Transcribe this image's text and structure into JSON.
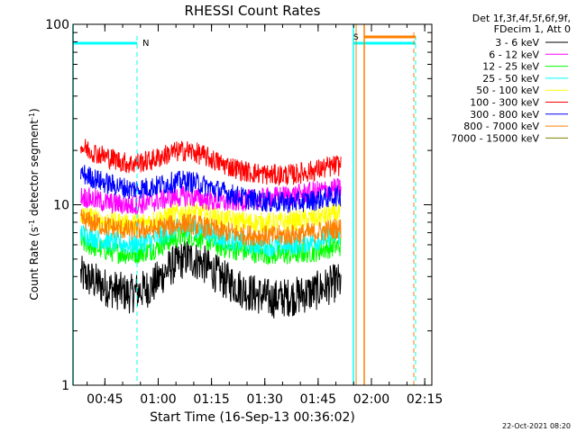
{
  "chart_data": {
    "type": "line",
    "title": "RHESSI Count Rates",
    "xlabel": "Start Time (16-Sep-13 00:36:02)",
    "ylabel_parts": [
      "Count Rate (s",
      "-1",
      " detector segment",
      "-1",
      ")"
    ],
    "yscale": "log",
    "ylim": [
      1,
      100
    ],
    "xlim": [
      "00:36:02",
      "02:17:00"
    ],
    "x_ticks": [
      "00:45",
      "01:00",
      "01:15",
      "01:30",
      "01:45",
      "02:00",
      "02:15"
    ],
    "y_ticks": [
      "1",
      "10",
      "100"
    ],
    "legend_header": [
      "Det 1f,3f,4f,5f,6f,9f,",
      "FDecim 1, Att 0"
    ],
    "legend_position": "top-right",
    "date_stamp": "22-Oct-2021 08:20",
    "series": [
      {
        "name": "3 - 6 keV",
        "color": "#000000",
        "x": [
          "00:38",
          "00:45",
          "00:52",
          "00:58",
          "01:04",
          "01:08",
          "01:12",
          "01:18",
          "01:25",
          "01:32",
          "01:38",
          "01:44",
          "01:50"
        ],
        "y": [
          4.1,
          3.5,
          3.2,
          3.5,
          4.6,
          5.1,
          4.8,
          3.9,
          3.3,
          3.0,
          3.1,
          3.3,
          3.7
        ]
      },
      {
        "name": "6 - 12 keV",
        "color": "#ff00ff",
        "x": [
          "00:38",
          "00:45",
          "00:52",
          "00:58",
          "01:04",
          "01:08",
          "01:12",
          "01:18",
          "01:25",
          "01:32",
          "01:38",
          "01:44",
          "01:50"
        ],
        "y": [
          11.2,
          10.3,
          9.9,
          10.3,
          11.0,
          11.2,
          10.8,
          10.3,
          10.6,
          11.0,
          11.3,
          11.8,
          12.3
        ]
      },
      {
        "name": "12 - 25 keV",
        "color": "#00ff00",
        "x": [
          "00:38",
          "00:45",
          "00:52",
          "00:58",
          "01:04",
          "01:08",
          "01:12",
          "01:18",
          "01:25",
          "01:32",
          "01:38",
          "01:44",
          "01:50"
        ],
        "y": [
          6.2,
          5.6,
          5.3,
          5.6,
          6.4,
          6.8,
          6.5,
          5.8,
          5.5,
          5.3,
          5.3,
          5.5,
          5.9
        ]
      },
      {
        "name": "25 - 50 keV",
        "color": "#00ffff",
        "x": [
          "00:38",
          "00:45",
          "00:52",
          "00:58",
          "01:04",
          "01:08",
          "01:12",
          "01:18",
          "01:25",
          "01:32",
          "01:38",
          "01:44",
          "01:50"
        ],
        "y": [
          7.0,
          6.3,
          6.0,
          6.3,
          7.2,
          7.6,
          7.3,
          6.5,
          6.1,
          5.9,
          6.0,
          6.3,
          6.8
        ]
      },
      {
        "name": "50 - 100 keV",
        "color": "#ffff00",
        "x": [
          "00:38",
          "00:45",
          "00:52",
          "00:58",
          "01:04",
          "01:08",
          "01:12",
          "01:18",
          "01:25",
          "01:32",
          "01:38",
          "01:44",
          "01:50"
        ],
        "y": [
          8.8,
          8.1,
          7.8,
          8.1,
          8.8,
          9.1,
          8.9,
          8.3,
          8.0,
          7.9,
          8.1,
          8.4,
          8.9
        ]
      },
      {
        "name": "100 - 300 keV",
        "color": "#ff0000",
        "x": [
          "00:38",
          "00:45",
          "00:52",
          "00:58",
          "01:04",
          "01:08",
          "01:12",
          "01:18",
          "01:25",
          "01:32",
          "01:38",
          "01:44",
          "01:50"
        ],
        "y": [
          21.0,
          18.5,
          16.8,
          17.6,
          19.5,
          20.0,
          19.0,
          16.8,
          15.2,
          14.6,
          14.7,
          15.5,
          16.5
        ]
      },
      {
        "name": "300 - 800 keV",
        "color": "#0000ff",
        "x": [
          "00:38",
          "00:45",
          "00:52",
          "00:58",
          "01:04",
          "01:08",
          "01:12",
          "01:18",
          "01:25",
          "01:32",
          "01:38",
          "01:44",
          "01:50"
        ],
        "y": [
          15.0,
          13.2,
          12.2,
          12.5,
          13.3,
          13.6,
          13.0,
          11.8,
          10.8,
          10.3,
          10.3,
          10.6,
          11.2
        ]
      },
      {
        "name": "800 - 7000 keV",
        "color": "#ff8000",
        "x": [
          "00:38",
          "00:45",
          "00:52",
          "00:58",
          "01:04",
          "01:08",
          "01:12",
          "01:18",
          "01:25",
          "01:32",
          "01:38",
          "01:44",
          "01:50"
        ],
        "y": [
          8.3,
          7.6,
          7.2,
          7.3,
          7.7,
          7.9,
          7.6,
          7.1,
          6.8,
          6.7,
          6.8,
          7.0,
          7.4
        ]
      },
      {
        "name": "7000 - 15000 keV",
        "color": "#808000",
        "x": [],
        "y": []
      }
    ],
    "annotations": [
      {
        "text": "N",
        "color": "#00ffff"
      },
      {
        "text": "S",
        "color": "#ff8000"
      }
    ]
  }
}
